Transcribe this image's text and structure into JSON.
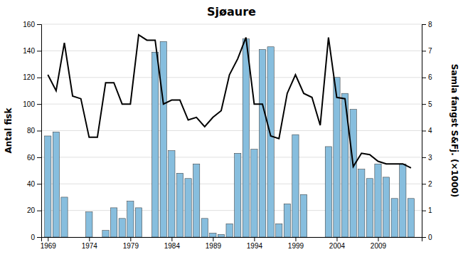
{
  "chart_data": {
    "type": "bar",
    "title": "Sjøaure",
    "y_label": "Antal fisk",
    "y2_label": "Samla fangst S&Fj. (×1000)",
    "x": [
      1969,
      1970,
      1971,
      1972,
      1973,
      1974,
      1975,
      1976,
      1977,
      1978,
      1979,
      1980,
      1981,
      1982,
      1983,
      1984,
      1985,
      1986,
      1987,
      1988,
      1989,
      1990,
      1991,
      1992,
      1993,
      1994,
      1995,
      1996,
      1997,
      1998,
      1999,
      2000,
      2001,
      2002,
      2003,
      2004,
      2005,
      2006,
      2007,
      2008,
      2009,
      2010,
      2011,
      2012,
      2013
    ],
    "series": [
      {
        "type": "bar",
        "color": "#87BEDE",
        "values": [
          76,
          79,
          30,
          0,
          0,
          19,
          0,
          5,
          22,
          14,
          27,
          22,
          0,
          139,
          147,
          65,
          48,
          44,
          55,
          14,
          3,
          2,
          10,
          63,
          149,
          66,
          141,
          143,
          10,
          25,
          77,
          32,
          0,
          0,
          68,
          120,
          108,
          96,
          51,
          44,
          55,
          45,
          29,
          55,
          29
        ]
      },
      {
        "type": "line",
        "color": "#000000",
        "axis": "y2",
        "values": [
          6.1,
          5.5,
          7.3,
          5.3,
          5.2,
          3.75,
          3.75,
          5.8,
          5.8,
          5.0,
          5.0,
          7.6,
          7.4,
          7.4,
          5.0,
          5.15,
          5.15,
          4.4,
          4.5,
          4.15,
          4.5,
          4.75,
          6.1,
          6.7,
          7.5,
          5.0,
          5.0,
          3.8,
          3.7,
          5.4,
          6.1,
          5.4,
          5.25,
          4.2,
          7.5,
          5.25,
          5.2,
          2.65,
          3.15,
          3.1,
          2.85,
          2.75,
          2.75,
          2.75,
          2.6
        ]
      }
    ],
    "xlim": [
      1968.2,
      2014.3
    ],
    "xticks": [
      1969,
      1974,
      1979,
      1984,
      1989,
      1994,
      1999,
      2004,
      2009
    ],
    "ylim": [
      0,
      160
    ],
    "yticks": [
      0,
      20,
      40,
      60,
      80,
      100,
      120,
      140,
      160
    ],
    "y2lim": [
      0,
      8
    ],
    "y2ticks": [
      0,
      1,
      2,
      3,
      4,
      5,
      6,
      7,
      8
    ],
    "grid": true
  }
}
